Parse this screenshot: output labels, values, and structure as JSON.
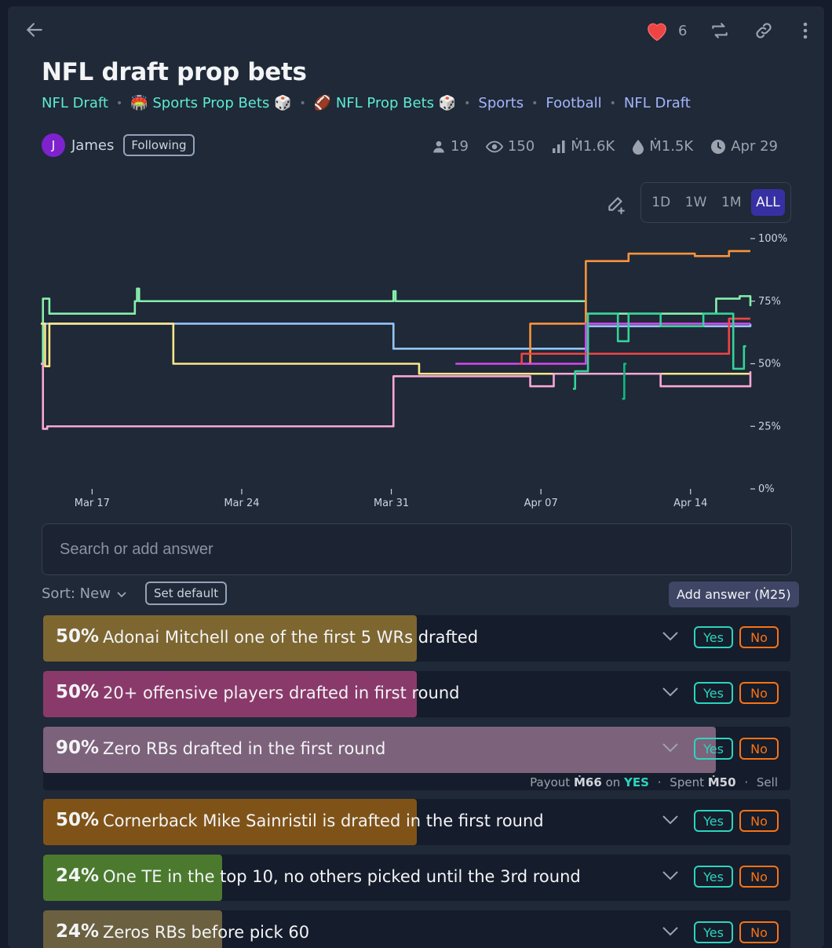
{
  "header": {
    "likes": "6"
  },
  "title": "NFL draft prop bets",
  "tags": [
    {
      "label": "NFL Draft",
      "color": "teal"
    },
    {
      "label": "🏟️ Sports Prop Bets 🎲",
      "color": "teal"
    },
    {
      "label": "🏈 NFL Prop Bets 🎲",
      "color": "teal"
    },
    {
      "label": "Sports",
      "color": "lav"
    },
    {
      "label": "Football",
      "color": "lav"
    },
    {
      "label": "NFL Draft",
      "color": "lav"
    }
  ],
  "author": {
    "initial": "J",
    "name": "James",
    "follow_label": "Following"
  },
  "stats": {
    "traders": "19",
    "views": "150",
    "volume": "Ṁ1.6K",
    "liquidity": "Ṁ1.5K",
    "close_date": "Apr 29"
  },
  "range_tabs": [
    "1D",
    "1W",
    "1M",
    "ALL"
  ],
  "range_active": "ALL",
  "chart_data": {
    "type": "line",
    "step": true,
    "ylim": [
      0,
      100
    ],
    "y_ticks": [
      {
        "v": 100,
        "label": "100%"
      },
      {
        "v": 75,
        "label": "75%"
      },
      {
        "v": 50,
        "label": "50%"
      },
      {
        "v": 25,
        "label": "25%"
      },
      {
        "v": 0,
        "label": "0%"
      }
    ],
    "x_start_day": 14.6,
    "x_end_day": 47.8,
    "x_ticks": [
      {
        "day": 17,
        "label": "Mar 17"
      },
      {
        "day": 24,
        "label": "Mar 24"
      },
      {
        "day": 31,
        "label": "Mar 31"
      },
      {
        "day": 38,
        "label": "Apr 07"
      },
      {
        "day": 45,
        "label": "Apr 14"
      }
    ],
    "series": [
      {
        "name": "One TE in the top 10",
        "color": "#86efac",
        "points": [
          [
            14.6,
            50
          ],
          [
            14.7,
            76
          ],
          [
            15.0,
            70
          ],
          [
            19.0,
            75
          ],
          [
            19.1,
            80
          ],
          [
            19.2,
            75
          ],
          [
            31.0,
            75
          ],
          [
            31.1,
            79
          ],
          [
            31.2,
            75
          ],
          [
            40.0,
            75
          ],
          [
            40.1,
            70
          ],
          [
            46.0,
            70
          ],
          [
            46.2,
            76
          ],
          [
            47.3,
            77
          ],
          [
            47.8,
            73
          ]
        ]
      },
      {
        "name": "Zero RBs drafted in the first round",
        "color": "#93c5fd",
        "points": [
          [
            14.6,
            66
          ],
          [
            15.0,
            66
          ],
          [
            31.0,
            66
          ],
          [
            31.1,
            56
          ],
          [
            38.5,
            56
          ],
          [
            38.6,
            56
          ],
          [
            40.1,
            56
          ],
          [
            40.2,
            65
          ],
          [
            47.8,
            66
          ]
        ]
      },
      {
        "name": "Cornerback Mike Sainristil",
        "color": "#fde68a",
        "points": [
          [
            14.6,
            66
          ],
          [
            14.8,
            49
          ],
          [
            15.0,
            66
          ],
          [
            20.7,
            66
          ],
          [
            20.8,
            50
          ],
          [
            32.2,
            50
          ],
          [
            32.3,
            46
          ],
          [
            47.8,
            46
          ]
        ]
      },
      {
        "name": "Zeros RBs before pick 60",
        "color": "#f9a8d4",
        "points": [
          [
            14.6,
            50
          ],
          [
            14.7,
            24
          ],
          [
            14.9,
            25
          ],
          [
            31.0,
            25
          ],
          [
            31.1,
            45
          ],
          [
            37.4,
            45
          ],
          [
            37.5,
            41
          ],
          [
            38.5,
            41
          ],
          [
            38.6,
            46
          ],
          [
            43.5,
            46
          ],
          [
            43.6,
            41
          ],
          [
            47.8,
            41
          ],
          [
            47.8,
            47
          ]
        ]
      },
      {
        "name": "Adonai Mitchell",
        "color": "#fb923c",
        "points": [
          [
            37.4,
            50
          ],
          [
            37.5,
            66
          ],
          [
            38.5,
            66
          ],
          [
            40.0,
            66
          ],
          [
            40.1,
            91
          ],
          [
            42.0,
            91
          ],
          [
            42.1,
            94
          ],
          [
            45.1,
            94
          ],
          [
            45.2,
            93
          ],
          [
            46.7,
            93
          ],
          [
            46.8,
            95
          ],
          [
            47.8,
            95
          ]
        ]
      },
      {
        "name": "20+ offensive players",
        "color": "#d946ef",
        "points": [
          [
            34.0,
            50
          ],
          [
            38.5,
            50
          ],
          [
            40.1,
            66
          ],
          [
            47.8,
            66
          ]
        ]
      },
      {
        "name": "red series",
        "color": "#ef4444",
        "points": [
          [
            37.0,
            50
          ],
          [
            37.1,
            54
          ],
          [
            46.7,
            54
          ],
          [
            46.8,
            68
          ],
          [
            47.8,
            68
          ]
        ]
      },
      {
        "name": "teal series",
        "color": "#34d399",
        "points": [
          [
            39.5,
            40
          ],
          [
            39.6,
            47
          ],
          [
            40.1,
            47
          ],
          [
            40.2,
            70
          ],
          [
            41.5,
            70
          ],
          [
            41.6,
            59
          ],
          [
            42.0,
            59
          ],
          [
            42.1,
            70
          ],
          [
            43.5,
            70
          ],
          [
            43.6,
            65
          ],
          [
            45.5,
            65
          ],
          [
            45.6,
            70
          ],
          [
            46.9,
            70
          ],
          [
            47.0,
            48
          ],
          [
            47.4,
            48
          ],
          [
            47.5,
            57
          ],
          [
            47.6,
            57
          ]
        ]
      },
      {
        "name": "green series 2",
        "color": "#10b981",
        "points": [
          [
            41.8,
            36
          ],
          [
            41.9,
            50
          ],
          [
            42.0,
            50
          ]
        ]
      }
    ]
  },
  "search": {
    "placeholder": "Search or add answer"
  },
  "sort": {
    "label": "Sort: New"
  },
  "set_default_label": "Set default",
  "add_answer_label": "Add answer (Ṁ25)",
  "answers": [
    {
      "pct": "50%",
      "value": 50,
      "text": "Adonai Mitchell one of the first 5 WRs drafted",
      "color": "#7d6630",
      "yes": "Yes",
      "no": "No"
    },
    {
      "pct": "50%",
      "value": 50,
      "text": "20+ offensive players drafted in first round",
      "color": "#8a3a6a",
      "yes": "Yes",
      "no": "No"
    },
    {
      "pct": "90%",
      "value": 90,
      "text": "Zero RBs drafted in the first round",
      "color": "#7d627b",
      "yes": "Yes",
      "no": "No",
      "payout": {
        "prefix": "Payout",
        "amount": "Ṁ66",
        "on": "on",
        "outcome": "YES",
        "spent_label": "Spent",
        "spent": "Ṁ50",
        "sell": "Sell"
      }
    },
    {
      "pct": "50%",
      "value": 50,
      "text": "Cornerback Mike Sainristil is drafted in the first round",
      "color": "#7f5318",
      "yes": "Yes",
      "no": "No"
    },
    {
      "pct": "24%",
      "value": 24,
      "text": "One TE in the top 10, no others picked until the 3rd round",
      "color": "#4b7a2e",
      "yes": "Yes",
      "no": "No"
    },
    {
      "pct": "24%",
      "value": 24,
      "text": "Zeros RBs before pick 60",
      "color": "#6b6040",
      "yes": "Yes",
      "no": "No"
    }
  ]
}
